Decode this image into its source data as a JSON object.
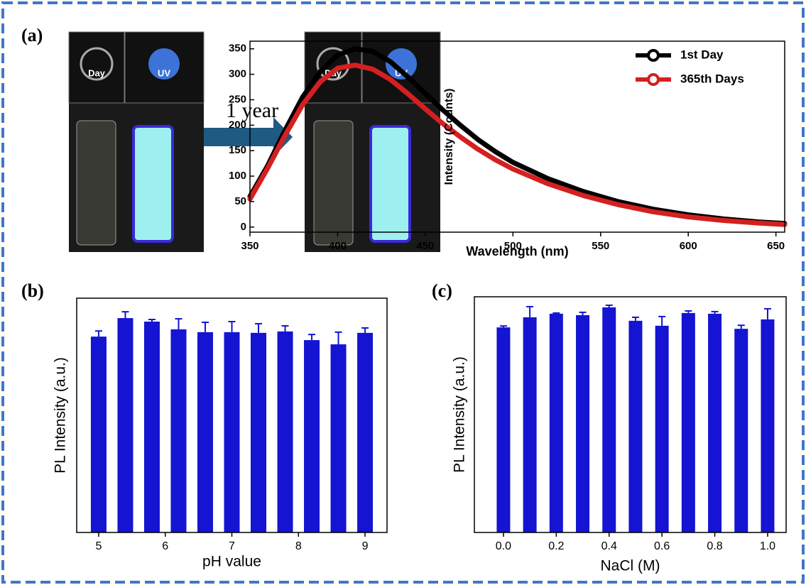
{
  "photos": {
    "labels": [
      "Day",
      "UV"
    ],
    "arrow_label": "1 year"
  },
  "chart_data": [
    {
      "type": "line",
      "panel_label": "(a)",
      "x_label": "Wavelength (nm)",
      "y_label": "Intensity (Counts)",
      "x": [
        350,
        360,
        370,
        380,
        390,
        400,
        410,
        420,
        430,
        440,
        450,
        460,
        470,
        480,
        490,
        500,
        520,
        540,
        560,
        580,
        600,
        620,
        640,
        655
      ],
      "series": [
        {
          "name": "1st Day",
          "color": "#000000",
          "values": [
            60,
            120,
            190,
            255,
            305,
            338,
            350,
            345,
            325,
            295,
            262,
            230,
            200,
            172,
            148,
            127,
            95,
            70,
            50,
            35,
            24,
            16,
            10,
            7
          ]
        },
        {
          "name": "365th Days",
          "color": "#d42020",
          "values": [
            55,
            115,
            180,
            240,
            285,
            312,
            318,
            310,
            290,
            262,
            232,
            203,
            177,
            153,
            132,
            114,
            85,
            62,
            44,
            30,
            20,
            13,
            8,
            5
          ]
        }
      ],
      "xlim": [
        350,
        655
      ],
      "xticks": [
        350,
        400,
        450,
        500,
        550,
        600,
        650
      ],
      "ylim": [
        -10,
        365
      ],
      "yticks": [
        0,
        50,
        100,
        150,
        200,
        250,
        300,
        350
      ],
      "legend": "upper right"
    },
    {
      "type": "bar",
      "panel_label": "(b)",
      "x_label": "pH value",
      "y_label": "PL Intensity (a.u.)",
      "color": "#1414d2",
      "x": [
        5,
        5.4,
        5.8,
        6.2,
        6.6,
        7,
        7.4,
        7.8,
        8.2,
        8.6,
        9
      ],
      "values": [
        0.836,
        0.915,
        0.9,
        0.867,
        0.855,
        0.855,
        0.852,
        0.858,
        0.821,
        0.803,
        0.852
      ],
      "errors": [
        0.024,
        0.027,
        0.009,
        0.045,
        0.042,
        0.045,
        0.039,
        0.024,
        0.024,
        0.052,
        0.021
      ],
      "xlim": [
        4.67,
        9.33
      ],
      "xticks": [
        5,
        6,
        7,
        8,
        9
      ],
      "ylim": [
        0,
        1
      ]
    },
    {
      "type": "bar",
      "panel_label": "(c)",
      "x_label": "NaCl (M)",
      "y_label": "PL Intensity (a.u.)",
      "color": "#1414d2",
      "x": [
        0,
        0.1,
        0.2,
        0.3,
        0.4,
        0.5,
        0.6,
        0.7,
        0.8,
        0.9,
        1
      ],
      "values": [
        0.87,
        0.913,
        0.928,
        0.922,
        0.955,
        0.898,
        0.877,
        0.931,
        0.928,
        0.864,
        0.904
      ],
      "errors": [
        0.006,
        0.045,
        0.003,
        0.012,
        0.009,
        0.015,
        0.039,
        0.009,
        0.009,
        0.015,
        0.045
      ],
      "xlim": [
        -0.11,
        1.07
      ],
      "xticks": [
        {
          "value": 0,
          "label": "0.0"
        },
        {
          "value": 0.2,
          "label": "0.2"
        },
        {
          "value": 0.4,
          "label": "0.4"
        },
        {
          "value": 0.6,
          "label": "0.6"
        },
        {
          "value": 0.8,
          "label": "0.8"
        },
        {
          "value": 1,
          "label": "1.0"
        }
      ],
      "ylim": [
        0,
        1
      ]
    }
  ]
}
